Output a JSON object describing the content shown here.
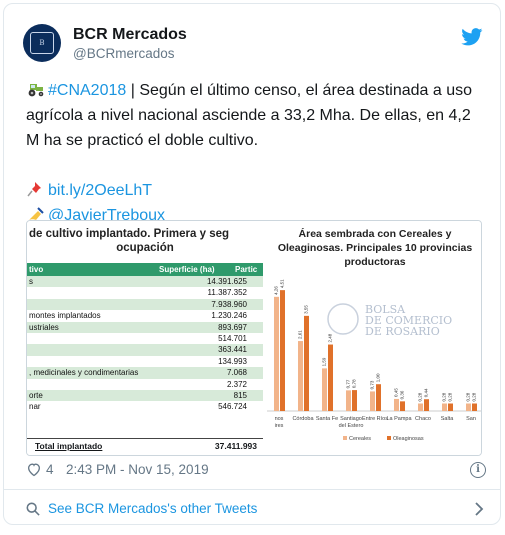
{
  "tweet": {
    "account": {
      "display_name": "BCR Mercados",
      "handle": "@BCRmercados",
      "avatar_icon": "bcr-emblem-icon"
    },
    "brand_color": "#1da1f2",
    "link_color": "#1b95e0",
    "text": {
      "hashtag": "#CNA2018",
      "line1_rest": " | Según el último censo, el área destinada a uso agrícola a nivel nacional asciende a 33,2 Mha. De ellas, en 4,2 M ha se practicó el doble cultivo.",
      "url": "bit.ly/2OeeLhT",
      "mention": "@JavierTreboux"
    },
    "likes": "4",
    "timestamp": "2:43 PM - Nov 15, 2019",
    "footer_link": "See BCR Mercados's other Tweets"
  },
  "media_table": {
    "title_line1": "de cultivo implantado. Primera y seg",
    "title_line2": "ocupación",
    "header": [
      "tivo",
      "Superficie (ha)",
      "Partic"
    ],
    "rows": [
      {
        "label": "s",
        "value": "14.391.625"
      },
      {
        "label": "",
        "value": "11.387.352"
      },
      {
        "label": "",
        "value": "7.938.960"
      },
      {
        "label": "montes implantados",
        "value": "1.230.246"
      },
      {
        "label": "ustriales",
        "value": "893.697"
      },
      {
        "label": "",
        "value": "514.701"
      },
      {
        "label": "",
        "value": "363.441"
      },
      {
        "label": "",
        "value": "134.993"
      },
      {
        "label": ", medicinales y condimentarias",
        "value": "7.068"
      },
      {
        "label": "",
        "value": "2.372"
      },
      {
        "label": "orte",
        "value": "815"
      },
      {
        "label": "nar",
        "value": "546.724"
      }
    ],
    "total_label": "Total implantado",
    "total_value": "37.411.993"
  },
  "chart_data": {
    "type": "bar",
    "title": "Área sembrada con Cereales y Oleaginosas. Principales 10 provincias productoras",
    "categories": [
      "Buenos Aires",
      "Córdoba",
      "Santa Fe",
      "Santiago del Estero",
      "Entre Ríos",
      "La Pampa",
      "Chaco",
      "Salta",
      "San L"
    ],
    "category_labels": [
      "nos\nires",
      "Córdoba",
      "Santa Fe",
      "Santiago\ndel Estero",
      "Entre Ríos",
      "La Pampa",
      "Chaco",
      "Salta",
      "San"
    ],
    "series": [
      {
        "name": "Cereales",
        "color": "#f2b48a",
        "values": [
          4.26,
          2.61,
          1.59,
          0.77,
          0.73,
          0.45,
          0.28,
          0.28,
          0.28
        ]
      },
      {
        "name": "Oleaginosas",
        "color": "#e0712a",
        "values": [
          4.51,
          3.55,
          2.48,
          0.78,
          1.0,
          0.36,
          0.44,
          0.28,
          0.28
        ]
      }
    ],
    "value_labels": {
      "Cereales": [
        "4,26",
        "2,61",
        "1,59",
        "0,77",
        "0,73",
        "0,45",
        "0,28",
        "0,28",
        "0,28"
      ],
      "Oleaginosas": [
        "4,51",
        "3,55",
        "2,48",
        "0,78",
        "1,00",
        "0,36",
        "0,44",
        "0,28",
        "0,28"
      ]
    },
    "ylim": [
      0,
      5
    ],
    "legend_position": "bottom",
    "watermark_lines": [
      "BOLSA",
      "DE COMERCIO",
      "DE ROSARIO"
    ]
  }
}
